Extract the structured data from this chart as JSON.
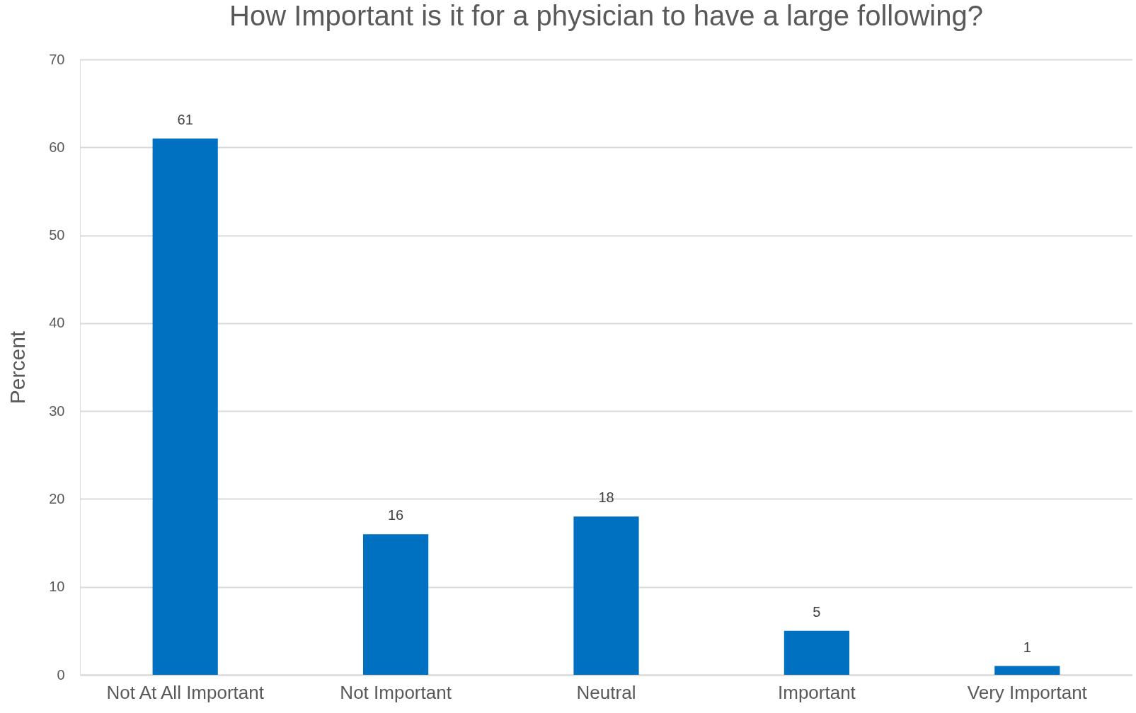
{
  "chart_data": {
    "type": "bar",
    "title": "How Important is it for a physician to have a large following?",
    "ylabel": "Percent",
    "categories": [
      "Not At All Important",
      "Not Important",
      "Neutral",
      "Important",
      "Very Important"
    ],
    "values": [
      61,
      16,
      18,
      5,
      1
    ],
    "color": "#0070c0",
    "ylim": [
      0,
      70
    ],
    "yticks": [
      0,
      10,
      20,
      30,
      40,
      50,
      60,
      70
    ],
    "grid": "y",
    "data_labels": true
  }
}
